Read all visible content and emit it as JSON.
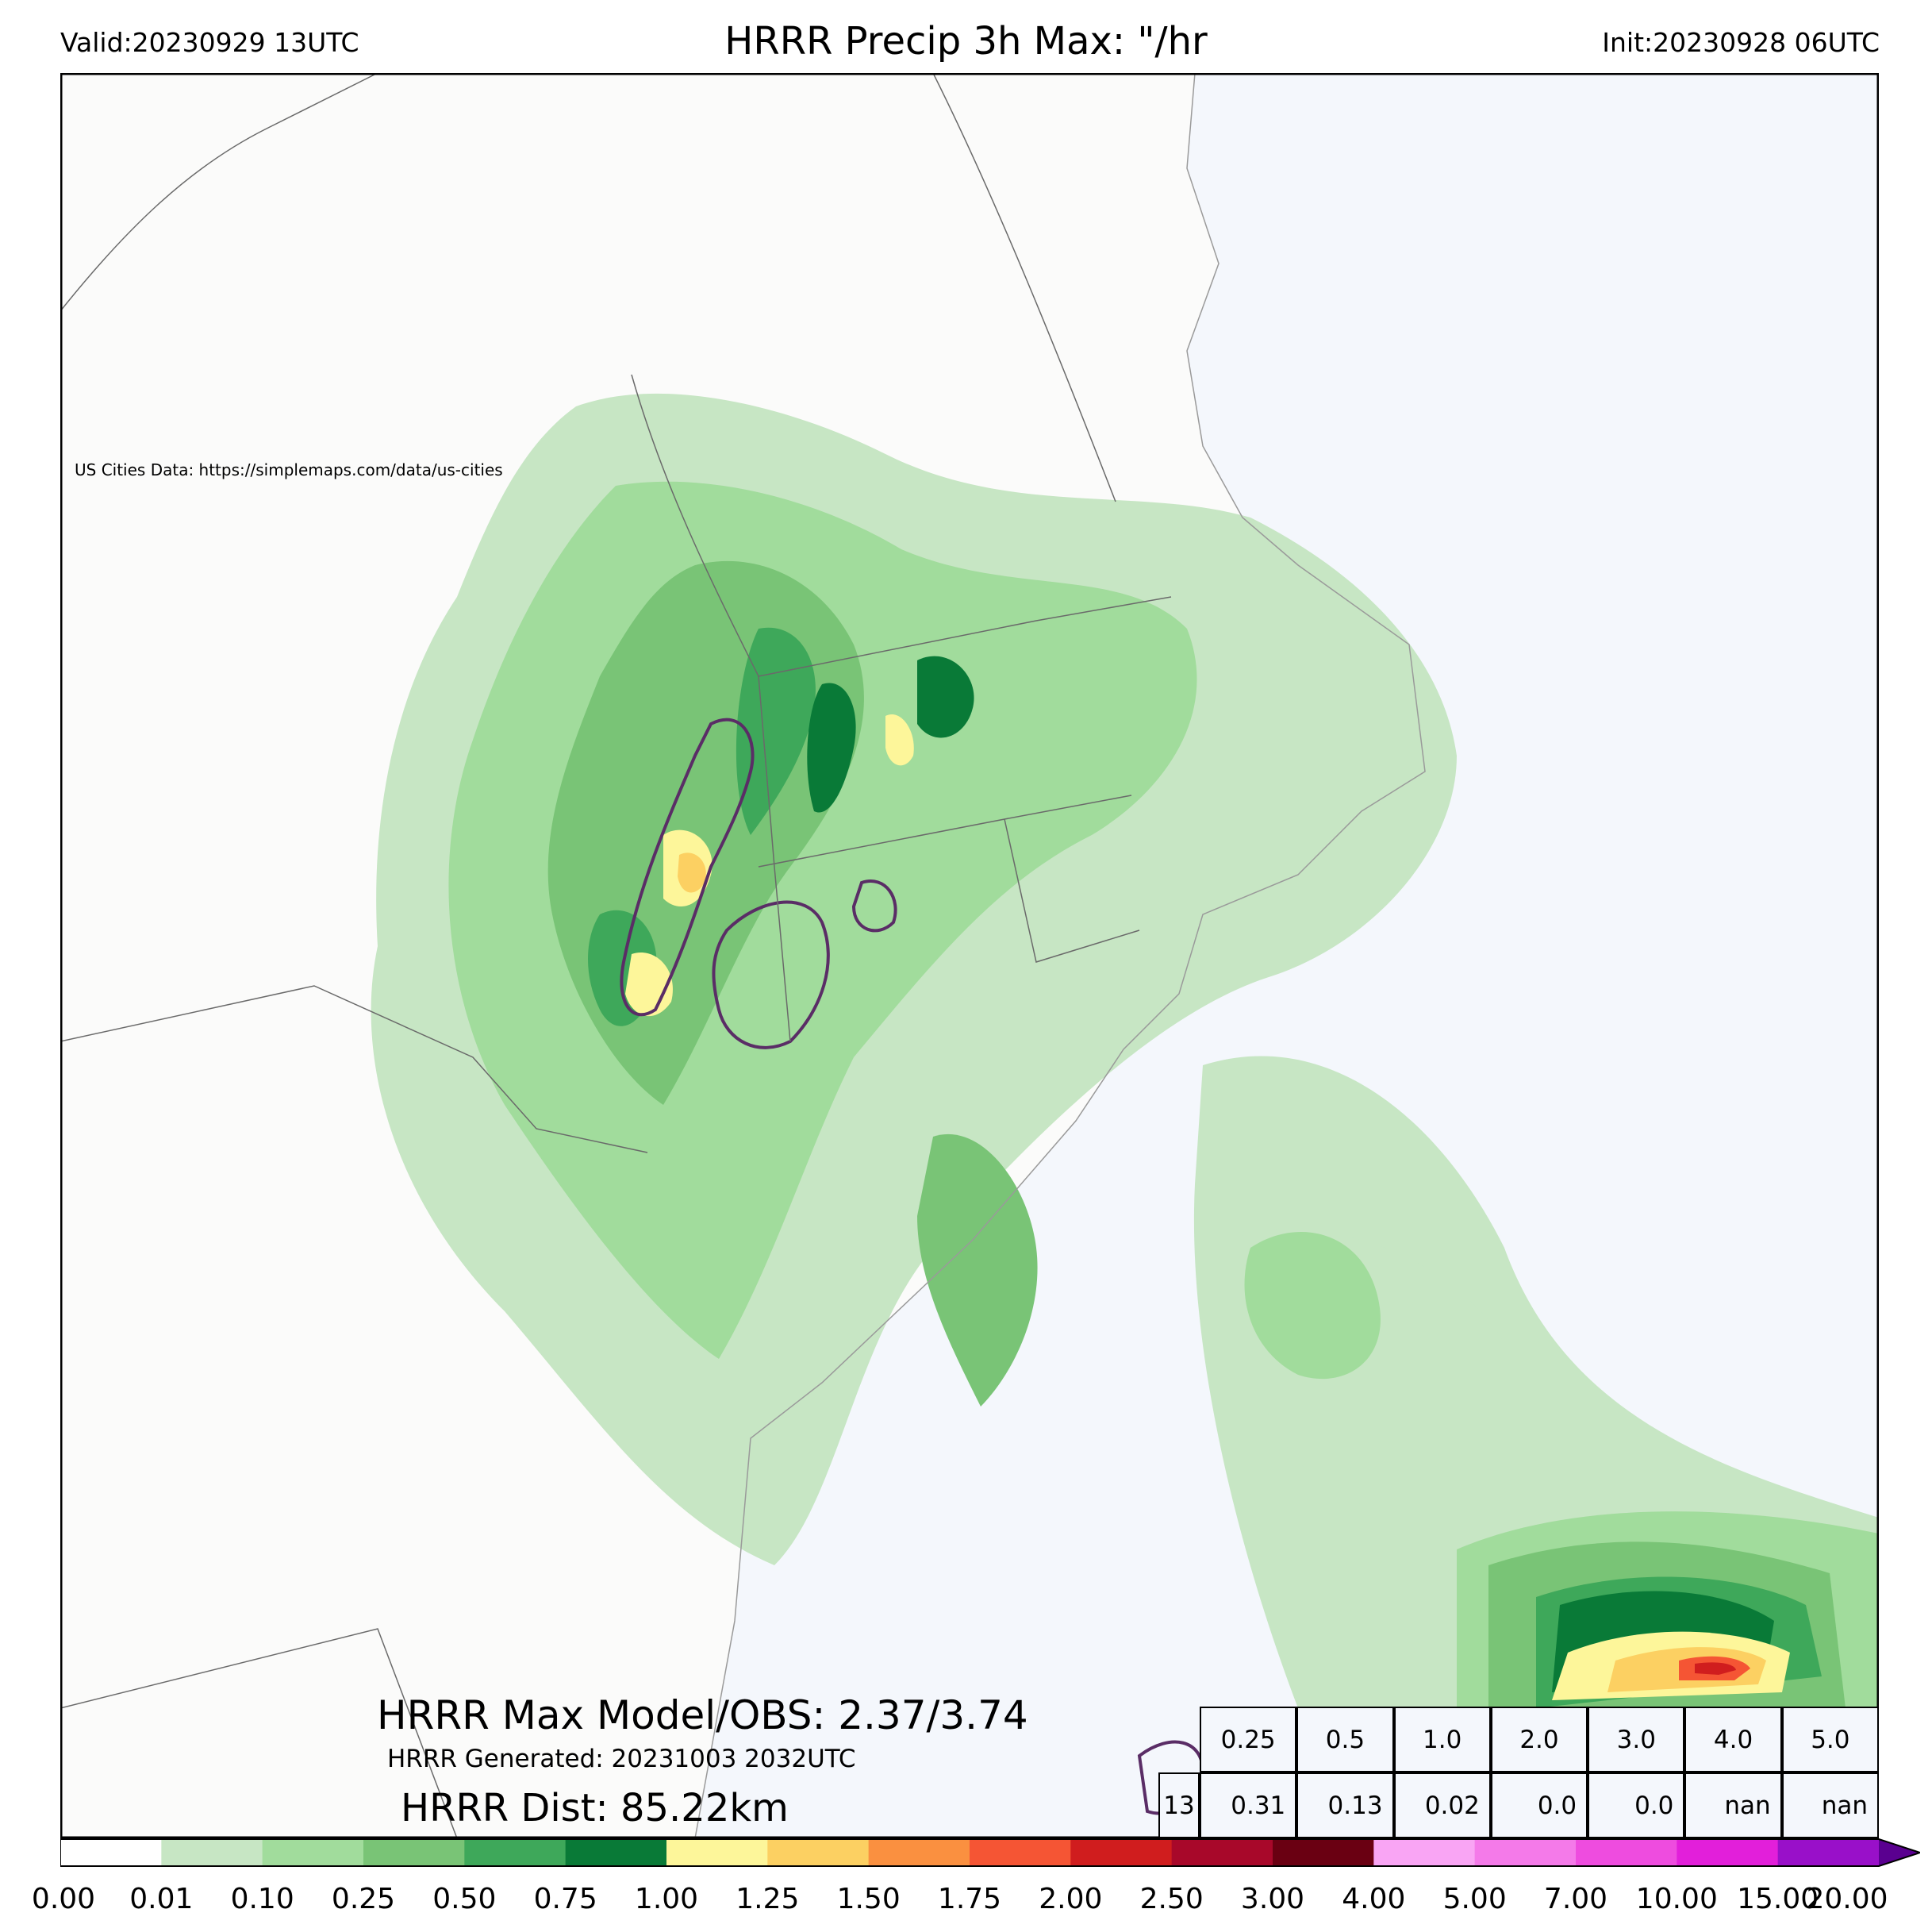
{
  "header": {
    "valid": "Valid:20230929 13UTC",
    "title": "HRRR Precip 3h Max: \"/hr",
    "init": "Init:20230928 06UTC"
  },
  "map": {
    "credit": "US Cities Data: https://simplemaps.com/data/us-cities",
    "ocean_color": "#f4f7fc",
    "land_color": "#fbfbfa"
  },
  "overlay": {
    "max_model_obs": "HRRR Max Model/OBS: 2.37/3.74",
    "generated": "HRRR Generated: 20231003 2032UTC",
    "distance": "HRRR Dist: 85.22km"
  },
  "stats_table": {
    "thresholds": [
      "0.25",
      "0.5",
      "1.0",
      "2.0",
      "3.0",
      "4.0",
      "5.0"
    ],
    "row_label": "13",
    "values": [
      "0.31",
      "0.13",
      "0.02",
      "0.0",
      "0.0",
      "nan",
      "nan"
    ]
  },
  "colorbar": {
    "ticks": [
      "0.00",
      "0.01",
      "0.10",
      "0.25",
      "0.50",
      "0.75",
      "1.00",
      "1.25",
      "1.50",
      "1.75",
      "2.00",
      "2.50",
      "3.00",
      "4.00",
      "5.00",
      "7.00",
      "10.00",
      "15.00",
      "20.00"
    ],
    "colors": [
      "#ffffff",
      "#c7e6c4",
      "#a1dc9c",
      "#79c476",
      "#3ea85a",
      "#097a37",
      "#fdf69a",
      "#fcd062",
      "#fa9040",
      "#f55534",
      "#d01d1e",
      "#a8082a",
      "#6a0012",
      "#f9a5f4",
      "#f47ae9",
      "#ee4cdf",
      "#e21fda",
      "#9910c9"
    ]
  }
}
